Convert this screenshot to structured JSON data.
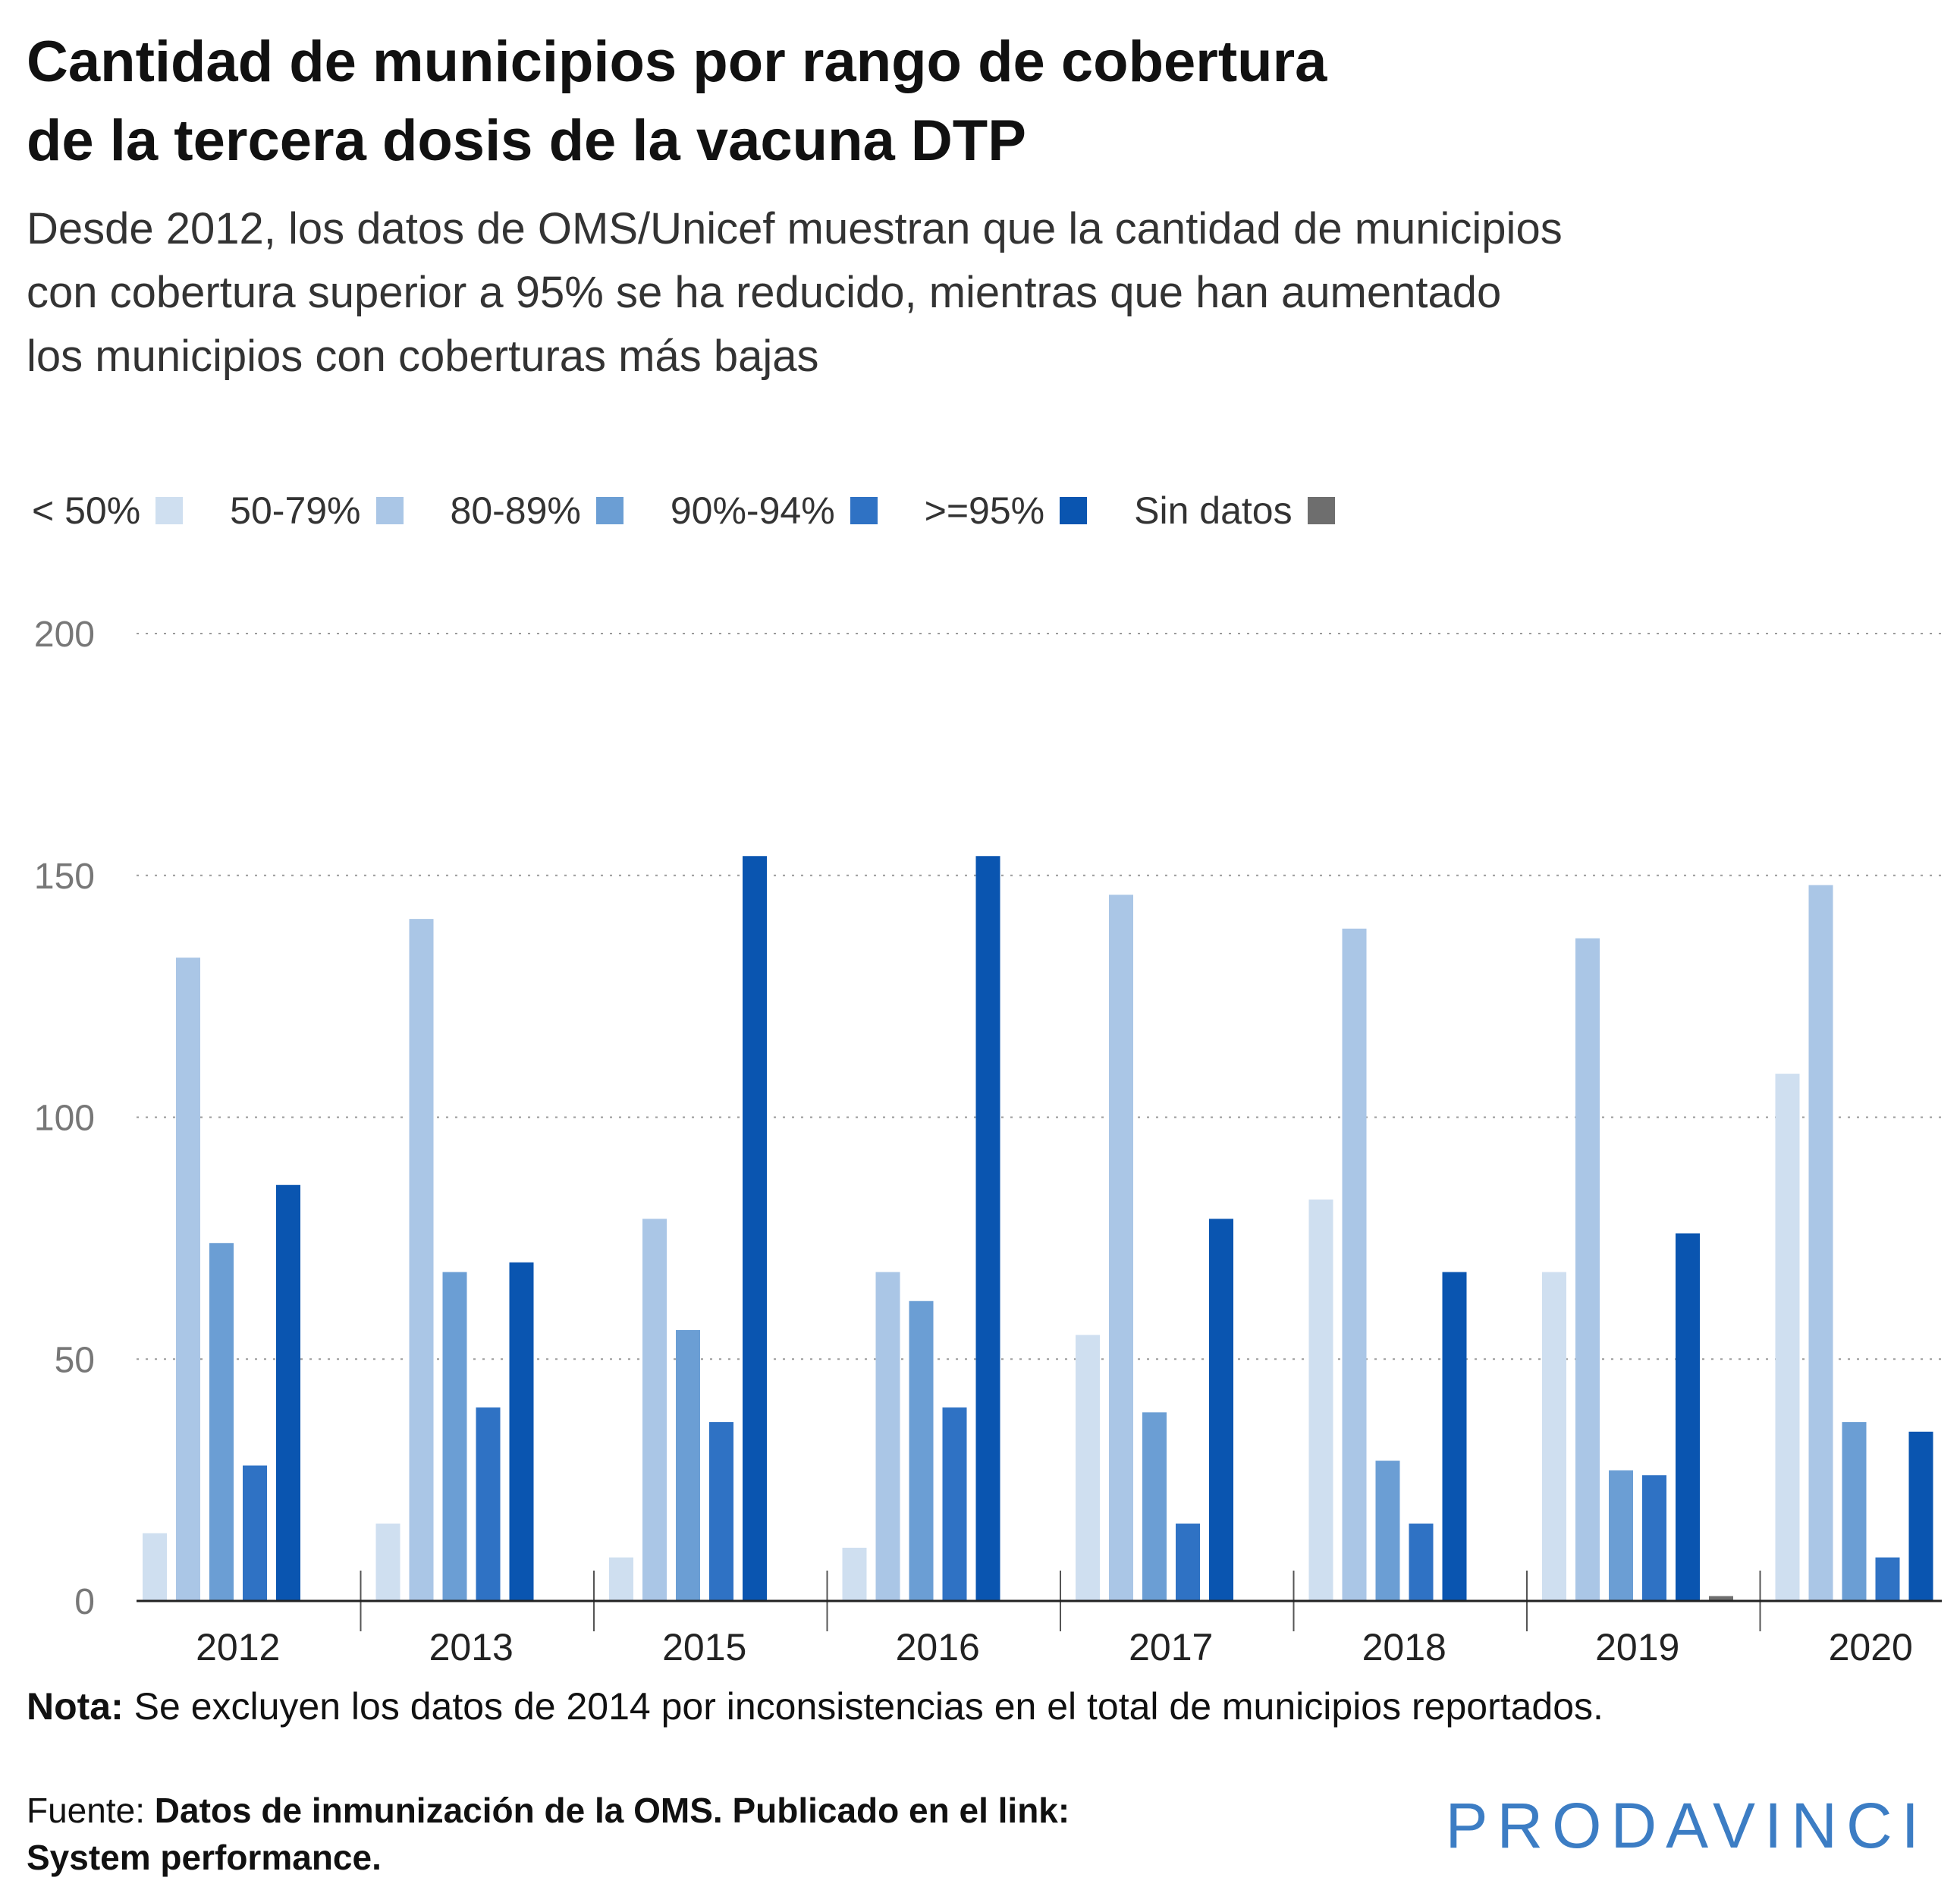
{
  "title_lines": [
    "Cantidad de municipios por rango de cobertura",
    "de la tercera dosis de la vacuna DTP"
  ],
  "subtitle_lines": [
    "Desde 2012, los datos de OMS/Unicef muestran que la cantidad de municipios",
    "con cobertura superior a 95% se ha reducido, mientras que han aumentado",
    "los municipios con coberturas más bajas"
  ],
  "legend": [
    {
      "label": "< 50%",
      "color": "#cfdff0"
    },
    {
      "label": "50-79%",
      "color": "#aac6e6"
    },
    {
      "label": "80-89%",
      "color": "#6b9ed4"
    },
    {
      "label": "90%-94%",
      "color": "#2f72c4"
    },
    {
      "label": ">=95%",
      "color": "#0a55b0"
    },
    {
      "label": "Sin datos",
      "color": "#6e6e6e"
    }
  ],
  "chart_data": {
    "type": "bar",
    "categories": [
      "2012",
      "2013",
      "2015",
      "2016",
      "2017",
      "2018",
      "2019",
      "2020"
    ],
    "series": [
      {
        "name": "< 50%",
        "color": "#cfdff0",
        "values": [
          14,
          16,
          9,
          11,
          55,
          83,
          68,
          109
        ]
      },
      {
        "name": "50-79%",
        "color": "#aac6e6",
        "values": [
          133,
          141,
          79,
          68,
          146,
          139,
          137,
          148
        ]
      },
      {
        "name": "80-89%",
        "color": "#6b9ed4",
        "values": [
          74,
          68,
          56,
          62,
          39,
          29,
          27,
          37
        ]
      },
      {
        "name": "90%-94%",
        "color": "#2f72c4",
        "values": [
          28,
          40,
          37,
          40,
          16,
          16,
          26,
          9
        ]
      },
      {
        "name": ">=95%",
        "color": "#0a55b0",
        "values": [
          86,
          70,
          154,
          154,
          79,
          68,
          76,
          35
        ]
      },
      {
        "name": "Sin datos",
        "color": "#6e6e6e",
        "values": [
          0,
          0,
          0,
          0,
          0,
          0,
          1,
          0
        ]
      }
    ],
    "yticks": [
      "0",
      "50",
      "100",
      "150",
      "200"
    ],
    "ylim": [
      0,
      200
    ],
    "grid": true,
    "legend_position": "top-left"
  },
  "note": {
    "label": "Nota:",
    "text": " Se excluyen los datos de 2014 por inconsistencias en el total de municipios reportados."
  },
  "source": {
    "label": "Fuente: ",
    "text_line1": "Datos de inmunización de la OMS. Publicado en el link:",
    "text_line2": "System performance."
  },
  "logo": "PRODAVINCI"
}
